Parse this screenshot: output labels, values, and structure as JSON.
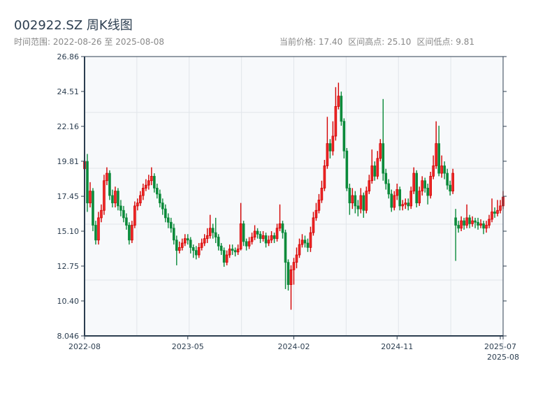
{
  "header": {
    "title": "002922.SZ 周K线图",
    "range_label": "时间范围: 2022-08-26 至 2025-08-08",
    "current_price": "当前价格: 17.40",
    "high_label": "区间高点: 25.10",
    "low_label": "区间低点: 9.81"
  },
  "colors": {
    "up": "#d40000",
    "up_fill": "#ee2a2a",
    "down": "#0a8a3a",
    "axis": "#2c3e50",
    "plot_bg": "#f7f9fb",
    "grid": "#e1e5ea"
  },
  "chart_data": {
    "type": "candlestick",
    "title": "002922.SZ 周K线图",
    "start_date": "2022-08-26",
    "end_date": "2025-08-08",
    "ylim": [
      8.046,
      26.86
    ],
    "y_ticks": [
      "8.046",
      "10.40",
      "12.75",
      "15.10",
      "17.45",
      "19.81",
      "22.16",
      "24.51",
      "26.86"
    ],
    "x_ticks": [
      {
        "label": "2022-08",
        "index": 0
      },
      {
        "label": "2023-05",
        "index": 37
      },
      {
        "label": "2024-02",
        "index": 75
      },
      {
        "label": "2024-11",
        "index": 112
      },
      {
        "label": "2025-07",
        "index": 149
      },
      {
        "label": "2025-08",
        "index": 150
      }
    ],
    "grid": true,
    "open": [
      19.3,
      19.8,
      17.0,
      17.8,
      15.5,
      14.5,
      16.0,
      16.5,
      18.5,
      19.0,
      17.5,
      17.0,
      17.8,
      16.8,
      16.5,
      16.0,
      15.5,
      14.5,
      15.5,
      16.8,
      17.0,
      17.5,
      18.0,
      18.2,
      18.5,
      18.8,
      18.0,
      17.6,
      17.0,
      16.6,
      16.0,
      15.7,
      15.3,
      14.5,
      13.8,
      14.0,
      14.3,
      14.6,
      14.5,
      14.0,
      13.8,
      13.5,
      14.0,
      14.3,
      14.6,
      14.8,
      15.3,
      15.0,
      14.7,
      14.1,
      13.8,
      13.0,
      13.5,
      13.9,
      13.8,
      13.7,
      13.9,
      15.6,
      14.4,
      14.1,
      14.4,
      14.7,
      15.1,
      14.9,
      14.6,
      14.8,
      14.3,
      14.5,
      14.8,
      14.6,
      15.3,
      15.6,
      15.0,
      13.0,
      11.5,
      12.5,
      13.0,
      13.5,
      14.2,
      14.5,
      14.3,
      14.0,
      15.0,
      16.0,
      16.5,
      17.2,
      18.0,
      19.5,
      21.0,
      20.5,
      21.5,
      23.5,
      24.2,
      22.5,
      20.5,
      18.0,
      17.0,
      17.5,
      16.8,
      16.6,
      17.5,
      16.5,
      17.8,
      18.5,
      19.5,
      18.8,
      20.0,
      21.0,
      19.0,
      18.3,
      17.6,
      16.7,
      17.5,
      17.9,
      16.8,
      16.9,
      17.0,
      16.8,
      17.8,
      19.0,
      17.0,
      17.8,
      18.5,
      18.0,
      17.5,
      18.8,
      19.5,
      21.0,
      19.0,
      19.5,
      19.0,
      18.2,
      17.8,
      16.0,
      15.5,
      15.3,
      15.8,
      15.5,
      16.0,
      15.6,
      15.8,
      15.7,
      15.5,
      15.6,
      15.3,
      15.5,
      15.9,
      16.4,
      16.3,
      16.5,
      16.8
    ],
    "close": [
      19.8,
      17.0,
      17.8,
      15.5,
      14.5,
      16.0,
      16.5,
      18.5,
      19.0,
      17.5,
      17.0,
      17.8,
      16.8,
      16.5,
      16.0,
      15.5,
      14.5,
      15.5,
      16.8,
      17.0,
      17.5,
      18.0,
      18.2,
      18.5,
      18.8,
      18.0,
      17.6,
      17.0,
      16.6,
      16.0,
      15.7,
      15.3,
      14.5,
      13.8,
      14.0,
      14.3,
      14.6,
      14.5,
      14.0,
      13.8,
      13.5,
      14.0,
      14.3,
      14.6,
      14.8,
      15.3,
      15.0,
      14.7,
      14.1,
      13.8,
      13.0,
      13.5,
      13.9,
      13.8,
      13.7,
      13.9,
      15.6,
      14.4,
      14.1,
      14.4,
      14.7,
      15.1,
      14.9,
      14.6,
      14.8,
      14.3,
      14.5,
      14.8,
      14.6,
      15.3,
      15.6,
      15.0,
      13.0,
      11.5,
      12.5,
      13.0,
      13.5,
      14.2,
      14.5,
      14.3,
      14.0,
      15.0,
      16.0,
      16.5,
      17.2,
      18.0,
      19.5,
      21.0,
      20.5,
      21.5,
      23.5,
      24.2,
      22.5,
      20.5,
      18.0,
      17.0,
      17.5,
      16.8,
      16.6,
      17.5,
      16.5,
      17.8,
      18.5,
      19.5,
      18.8,
      20.0,
      21.0,
      19.0,
      18.3,
      17.6,
      16.7,
      17.5,
      17.9,
      16.8,
      16.9,
      17.0,
      16.8,
      17.8,
      19.0,
      17.0,
      17.8,
      18.5,
      18.0,
      17.5,
      18.8,
      19.5,
      21.0,
      19.0,
      19.5,
      19.0,
      18.2,
      17.8,
      19.0,
      15.5,
      15.3,
      15.8,
      15.5,
      16.0,
      15.6,
      15.8,
      15.7,
      15.5,
      15.6,
      15.3,
      15.5,
      15.9,
      16.4,
      16.3,
      16.5,
      16.8,
      17.4
    ],
    "high": [
      20.6,
      20.3,
      18.4,
      18.0,
      15.8,
      16.4,
      16.9,
      18.9,
      19.4,
      19.2,
      17.9,
      18.1,
      18.0,
      17.2,
      16.8,
      16.3,
      15.7,
      15.8,
      17.1,
      17.3,
      17.8,
      18.3,
      18.6,
      18.9,
      19.4,
      19.0,
      18.3,
      17.9,
      17.3,
      16.9,
      16.3,
      16.0,
      15.6,
      14.8,
      14.4,
      14.6,
      14.9,
      14.9,
      14.7,
      14.2,
      14.1,
      14.3,
      14.6,
      14.9,
      15.3,
      16.2,
      15.6,
      16.0,
      14.9,
      14.3,
      14.0,
      13.8,
      14.2,
      14.2,
      14.0,
      14.2,
      17.0,
      15.8,
      14.6,
      14.7,
      15.0,
      15.5,
      15.3,
      15.1,
      15.1,
      15.0,
      14.8,
      15.1,
      15.0,
      15.6,
      16.9,
      15.8,
      15.2,
      13.2,
      12.8,
      13.3,
      14.0,
      14.6,
      14.9,
      14.8,
      14.6,
      15.4,
      16.4,
      17.0,
      17.6,
      18.5,
      19.9,
      22.8,
      21.3,
      22.5,
      24.8,
      25.1,
      24.5,
      22.7,
      20.7,
      18.3,
      18.0,
      17.8,
      17.2,
      18.0,
      17.7,
      18.1,
      18.9,
      20.6,
      19.8,
      20.5,
      21.3,
      24.0,
      19.3,
      18.6,
      17.9,
      17.8,
      18.3,
      18.1,
      17.2,
      17.3,
      17.3,
      18.1,
      19.4,
      19.2,
      18.1,
      18.8,
      18.7,
      18.3,
      19.1,
      20.2,
      22.5,
      22.2,
      20.2,
      19.8,
      19.3,
      18.5,
      19.3,
      16.6,
      15.8,
      16.1,
      16.0,
      16.9,
      16.2,
      16.1,
      16.0,
      16.0,
      15.9,
      15.8,
      15.8,
      16.2,
      17.3,
      16.7,
      17.2,
      17.2,
      17.8
    ],
    "low": [
      18.9,
      16.4,
      16.7,
      15.1,
      14.2,
      14.2,
      15.7,
      16.2,
      18.2,
      17.2,
      16.7,
      16.7,
      16.5,
      16.1,
      15.7,
      15.2,
      14.2,
      14.3,
      15.3,
      16.5,
      16.8,
      17.2,
      17.8,
      17.9,
      18.2,
      17.7,
      17.3,
      16.7,
      16.2,
      15.7,
      15.3,
      15.0,
      14.2,
      12.8,
      13.6,
      13.8,
      14.1,
      14.2,
      13.6,
      13.3,
      13.2,
      13.3,
      13.8,
      14.1,
      14.3,
      14.6,
      14.6,
      14.3,
      13.8,
      13.5,
      12.7,
      12.8,
      13.3,
      13.5,
      13.4,
      13.5,
      13.8,
      14.1,
      13.8,
      13.9,
      14.2,
      14.5,
      14.6,
      14.3,
      14.4,
      14.0,
      14.1,
      14.3,
      14.3,
      14.4,
      15.1,
      14.6,
      11.2,
      11.1,
      9.81,
      11.5,
      12.6,
      13.3,
      14.0,
      14.0,
      13.7,
      13.7,
      14.8,
      15.8,
      16.3,
      17.0,
      17.8,
      19.3,
      20.0,
      20.2,
      21.2,
      23.3,
      22.2,
      20.0,
      17.8,
      16.2,
      16.6,
      16.3,
      16.1,
      16.3,
      16.0,
      16.3,
      17.6,
      18.3,
      18.5,
      18.6,
      19.8,
      18.5,
      17.9,
      17.3,
      16.4,
      16.5,
      17.2,
      16.5,
      16.5,
      16.6,
      16.5,
      16.6,
      17.6,
      16.7,
      16.8,
      17.5,
      17.7,
      16.9,
      17.3,
      18.6,
      19.3,
      18.8,
      18.7,
      18.6,
      17.9,
      17.5,
      17.6,
      13.1,
      15.0,
      15.1,
      15.2,
      15.3,
      15.3,
      15.4,
      15.3,
      15.2,
      15.3,
      14.9,
      15.0,
      15.3,
      15.7,
      16.0,
      16.1,
      16.3,
      16.6
    ]
  }
}
